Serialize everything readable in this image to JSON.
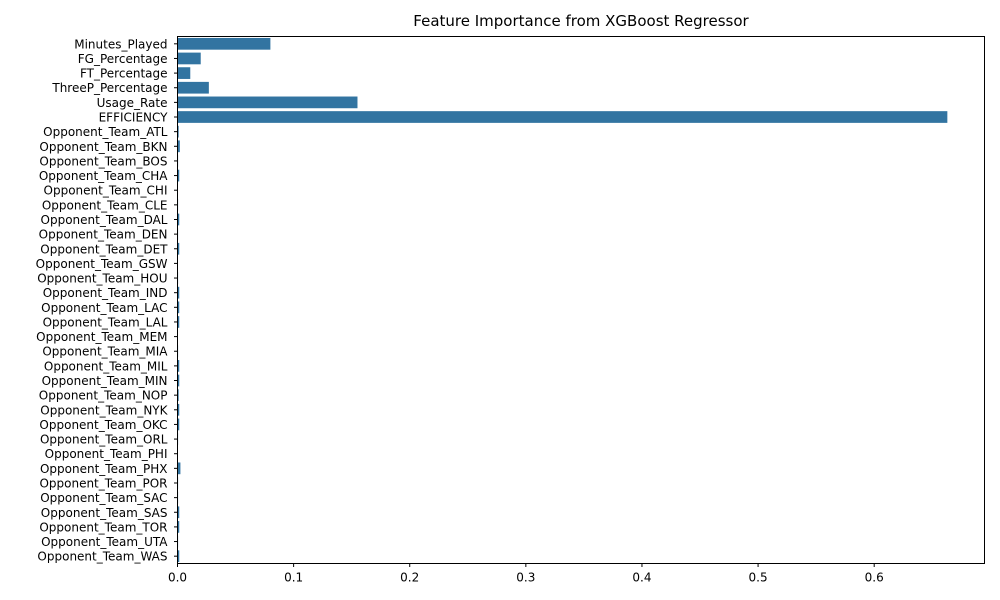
{
  "chart_data": {
    "type": "bar",
    "orientation": "horizontal",
    "title": "Feature Importance from XGBoost Regressor",
    "xlabel": "",
    "ylabel": "",
    "xlim": [
      0,
      0.695
    ],
    "x_ticks": [
      "0.0",
      "0.1",
      "0.2",
      "0.3",
      "0.4",
      "0.5",
      "0.6"
    ],
    "x_tick_values": [
      0,
      0.1,
      0.2,
      0.3,
      0.4,
      0.5,
      0.6
    ],
    "grid": false,
    "bar_color": "#3274a1",
    "categories": [
      "Minutes_Played",
      "FG_Percentage",
      "FT_Percentage",
      "ThreeP_Percentage",
      "Usage_Rate",
      "EFFICIENCY",
      "Opponent_Team_ATL",
      "Opponent_Team_BKN",
      "Opponent_Team_BOS",
      "Opponent_Team_CHA",
      "Opponent_Team_CHI",
      "Opponent_Team_CLE",
      "Opponent_Team_DAL",
      "Opponent_Team_DEN",
      "Opponent_Team_DET",
      "Opponent_Team_GSW",
      "Opponent_Team_HOU",
      "Opponent_Team_IND",
      "Opponent_Team_LAC",
      "Opponent_Team_LAL",
      "Opponent_Team_MEM",
      "Opponent_Team_MIA",
      "Opponent_Team_MIL",
      "Opponent_Team_MIN",
      "Opponent_Team_NOP",
      "Opponent_Team_NYK",
      "Opponent_Team_OKC",
      "Opponent_Team_ORL",
      "Opponent_Team_PHI",
      "Opponent_Team_PHX",
      "Opponent_Team_POR",
      "Opponent_Team_SAC",
      "Opponent_Team_SAS",
      "Opponent_Team_TOR",
      "Opponent_Team_UTA",
      "Opponent_Team_WAS"
    ],
    "values": [
      0.08,
      0.02,
      0.011,
      0.027,
      0.155,
      0.663,
      0.001,
      0.002,
      0.0005,
      0.0015,
      0.0,
      0.0005,
      0.0015,
      0.0005,
      0.0015,
      0.0,
      0.0005,
      0.0015,
      0.0015,
      0.0015,
      0.0,
      0.0005,
      0.0015,
      0.0015,
      0.001,
      0.0015,
      0.0015,
      0.0005,
      0.0,
      0.0025,
      0.0005,
      0.0005,
      0.0015,
      0.0015,
      0.0005,
      0.0015
    ]
  }
}
